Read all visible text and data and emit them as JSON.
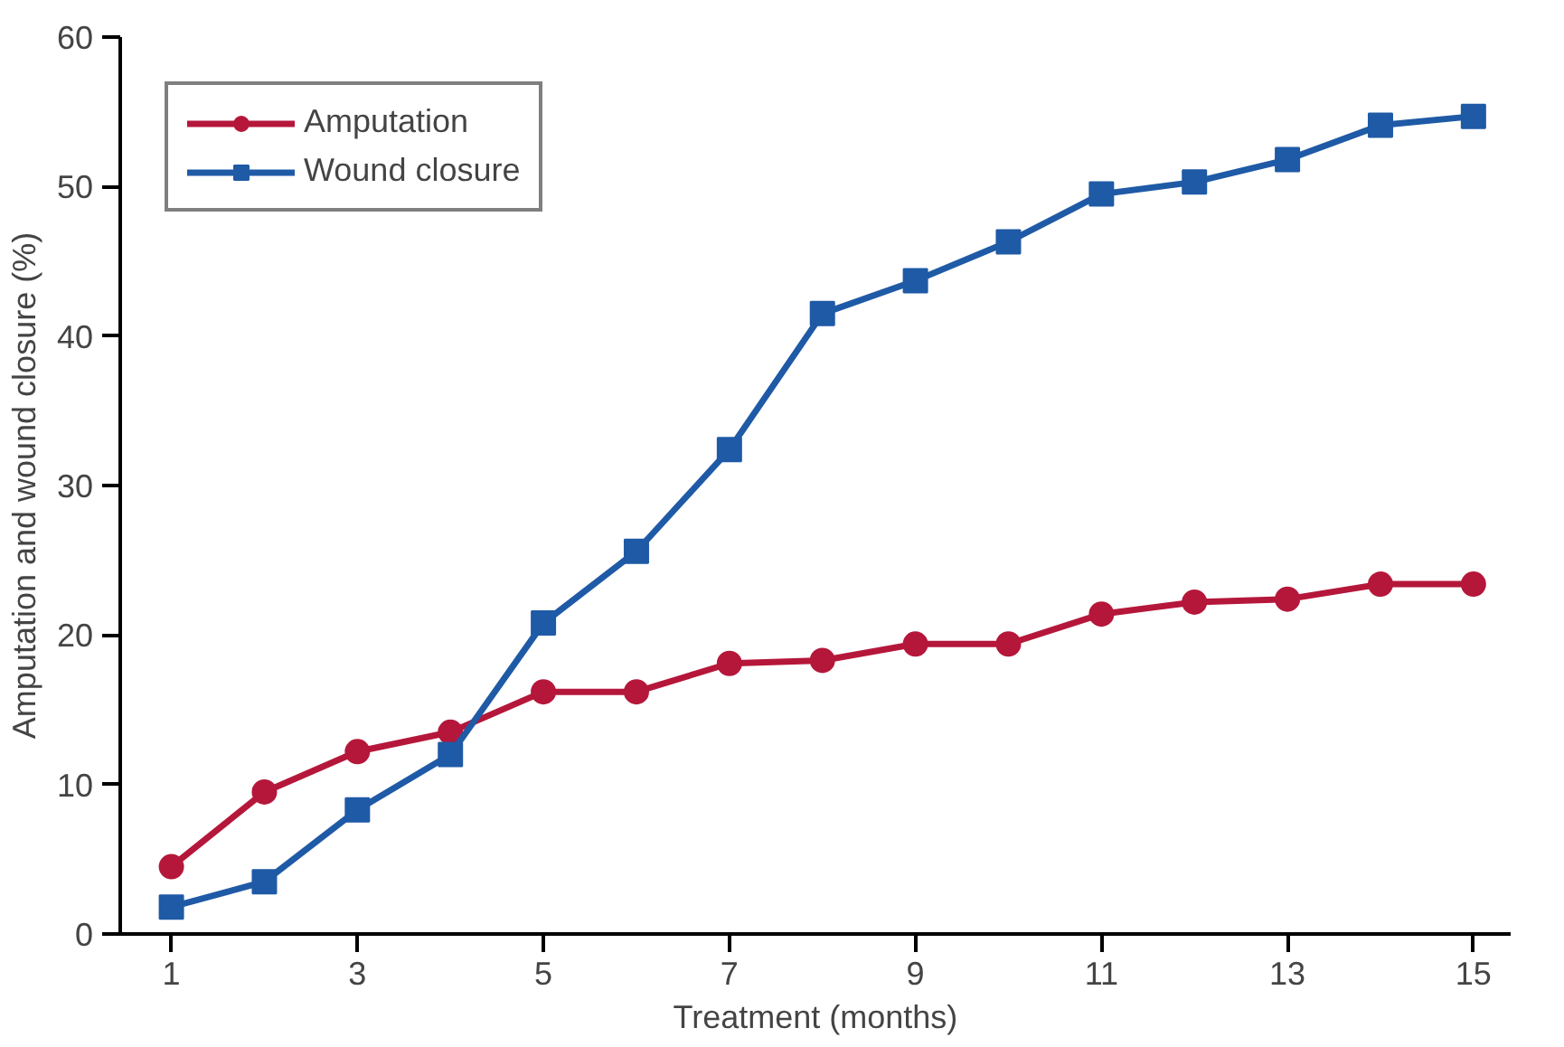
{
  "chart_data": {
    "type": "line",
    "xlabel": "Treatment (months)",
    "ylabel": "Amputation and wound closure (%)",
    "x": [
      1,
      2,
      3,
      4,
      5,
      6,
      7,
      8,
      9,
      10,
      11,
      12,
      13,
      14,
      15
    ],
    "series": [
      {
        "name": "Amputation",
        "color": "#b5173a",
        "marker": "circle",
        "values": [
          4.5,
          9.5,
          12.2,
          13.5,
          16.2,
          16.2,
          18.1,
          18.3,
          19.4,
          19.4,
          21.4,
          22.2,
          22.4,
          23.4,
          23.4
        ]
      },
      {
        "name": "Wound closure",
        "color": "#1f5aa6",
        "marker": "square",
        "values": [
          1.8,
          3.5,
          8.3,
          12,
          20.8,
          25.6,
          32.4,
          41.5,
          43.7,
          46.3,
          49.5,
          50.3,
          51.8,
          54.1,
          54.7
        ]
      }
    ],
    "xlim": [
      0.45,
      15.4
    ],
    "xticks": [
      1,
      3,
      5,
      7,
      9,
      11,
      13,
      15
    ],
    "ylim": [
      0,
      60
    ],
    "yticks": [
      0,
      10,
      20,
      30,
      40,
      50,
      60
    ],
    "grid": false,
    "legend": "top left",
    "line_style": "solid"
  }
}
